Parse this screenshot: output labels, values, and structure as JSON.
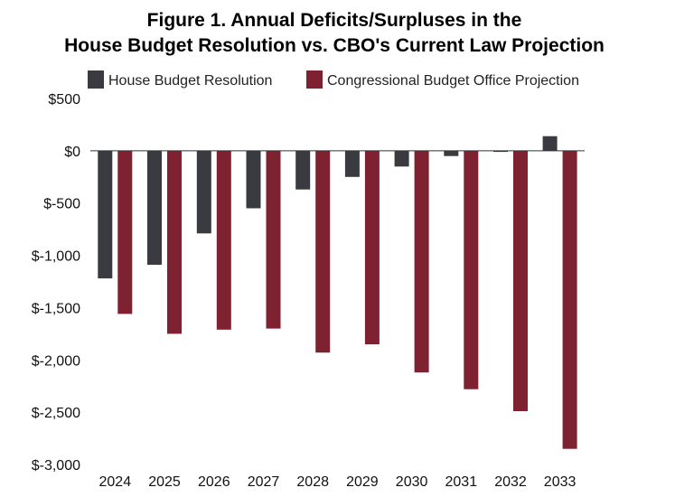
{
  "chart_data": {
    "type": "bar",
    "title_line1": "Figure 1. Annual Deficits/Surpluses in the",
    "title_line2": "House Budget Resolution vs. CBO's Current Law Projection",
    "xlabel": "",
    "ylabel": "",
    "categories": [
      "2024",
      "2025",
      "2026",
      "2027",
      "2028",
      "2029",
      "2030",
      "2031",
      "2032",
      "2033"
    ],
    "series": [
      {
        "name": "House Budget Resolution",
        "color": "#3a3b40",
        "values": [
          -1220,
          -1090,
          -790,
          -550,
          -370,
          -250,
          -150,
          -50,
          -10,
          140
        ]
      },
      {
        "name": "Congressional Budget Office Projection",
        "color": "#7e2231",
        "values": [
          -1560,
          -1750,
          -1710,
          -1700,
          -1930,
          -1850,
          -2120,
          -2280,
          -2490,
          -2850
        ]
      }
    ],
    "ylim": [
      -3000,
      500
    ],
    "yticks": [
      500,
      0,
      -500,
      -1000,
      -1500,
      -2000,
      -2500,
      -3000
    ],
    "ytick_labels": [
      "$500",
      "$0",
      "$-500",
      "$-1,000",
      "$-1,500",
      "$-2,000",
      "$-2,500",
      "$-3,000"
    ],
    "legend_position": "top",
    "grid": false
  }
}
